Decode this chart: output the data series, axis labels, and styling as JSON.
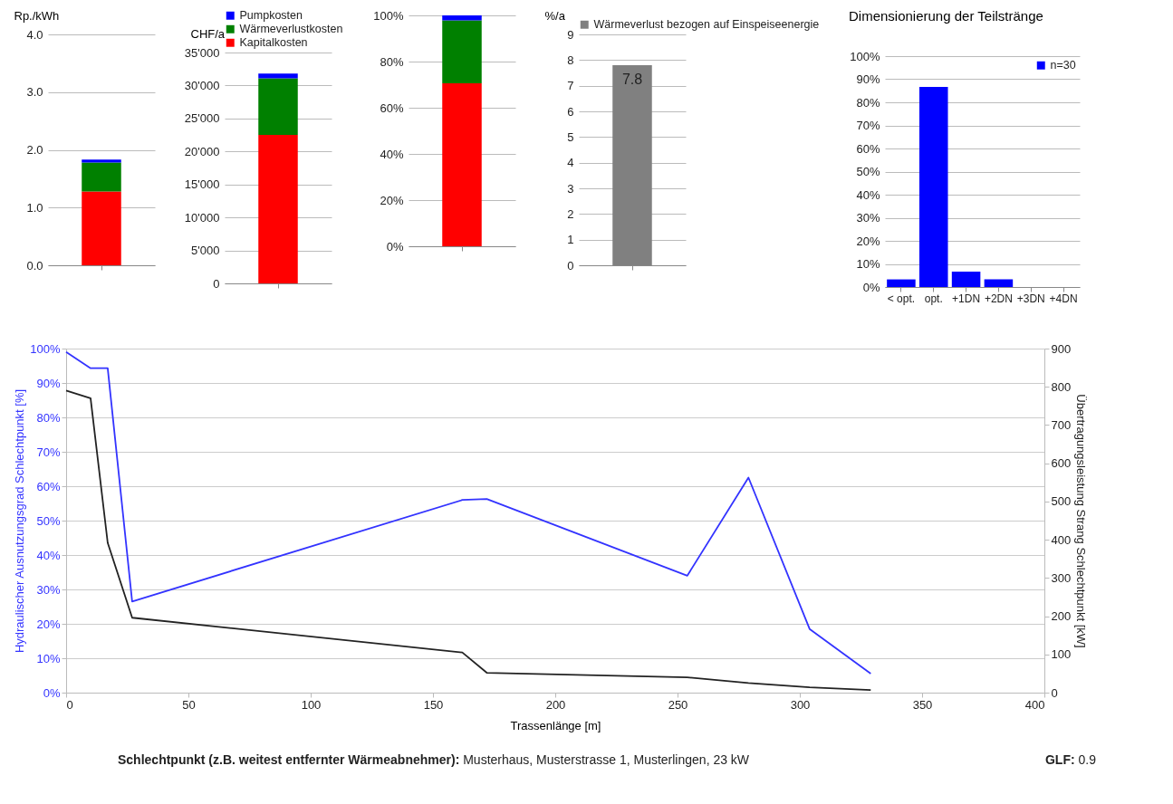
{
  "chart_data": [
    {
      "type": "bar",
      "stacked": true,
      "ylabel": "Rp./kWh",
      "categories": [
        null
      ],
      "series": [
        {
          "color": "#ff0000",
          "values": [
            1.28
          ]
        },
        {
          "color": "#008000",
          "values": [
            0.5
          ]
        },
        {
          "color": "#0000ff",
          "values": [
            0.05
          ]
        }
      ],
      "ylim": [
        0,
        4
      ],
      "yticks": [
        {
          "value": 0,
          "label": "0.0"
        },
        {
          "value": 1,
          "label": "1.0"
        },
        {
          "value": 2,
          "label": "2.0"
        },
        {
          "value": 3,
          "label": "3.0"
        },
        {
          "value": 4,
          "label": "4.0"
        }
      ],
      "grid": "y"
    },
    {
      "type": "bar",
      "stacked": true,
      "ylabel": "CHF/a",
      "categories": [
        null
      ],
      "series": [
        {
          "name": "Kapitalkosten",
          "color": "#ff0000",
          "values": [
            22500
          ]
        },
        {
          "name": "Wärmeverlustkosten",
          "color": "#008000",
          "values": [
            8600
          ]
        },
        {
          "name": "Pumpkosten",
          "color": "#0000ff",
          "values": [
            700
          ]
        }
      ],
      "ylim": [
        0,
        35000
      ],
      "yticks": [
        0,
        {
          "value": 5000,
          "label": "5'000"
        },
        {
          "value": 10000,
          "label": "10'000"
        },
        {
          "value": 15000,
          "label": "15'000"
        },
        {
          "value": 20000,
          "label": "20'000"
        },
        {
          "value": 25000,
          "label": "25'000"
        },
        {
          "value": 30000,
          "label": "30'000"
        },
        {
          "value": 35000,
          "label": "35'000"
        }
      ],
      "grid": "y",
      "legend": "top"
    },
    {
      "type": "bar",
      "stacked": true,
      "categories": [
        null
      ],
      "series": [
        {
          "color": "#ff0000",
          "values": [
            70.6
          ]
        },
        {
          "color": "#008000",
          "values": [
            27.2
          ]
        },
        {
          "color": "#0000ff",
          "values": [
            2.2
          ]
        }
      ],
      "ylim": [
        0,
        100
      ],
      "yticks": [
        {
          "value": 0,
          "label": "0%"
        },
        {
          "value": 20,
          "label": "20%"
        },
        {
          "value": 40,
          "label": "40%"
        },
        {
          "value": 60,
          "label": "60%"
        },
        {
          "value": 80,
          "label": "80%"
        },
        {
          "value": 100,
          "label": "100%"
        }
      ],
      "grid": "y"
    },
    {
      "type": "bar",
      "ylabel": "%/a",
      "categories": [
        null
      ],
      "series": [
        {
          "name": "Wärmeverlust bezogen auf Einspeiseenergie",
          "color": "#808080",
          "values": [
            7.8
          ]
        }
      ],
      "ylim": [
        0,
        9
      ],
      "yticks": [
        0,
        1,
        2,
        3,
        4,
        5,
        6,
        7,
        8,
        9
      ],
      "grid": "y",
      "legend": "top",
      "data_labels": true
    },
    {
      "type": "bar",
      "title": "Dimensionierung der Teilstränge",
      "categories": [
        "< opt.",
        "opt.",
        "+1DN",
        "+2DN",
        "+3DN",
        "+4DN"
      ],
      "series": [
        {
          "name": "n=30",
          "color": "#0000ff",
          "values": [
            3.3,
            86.7,
            6.7,
            3.3,
            0,
            0
          ]
        }
      ],
      "ylim": [
        0,
        100
      ],
      "yticks": [
        {
          "value": 0,
          "label": "0%"
        },
        {
          "value": 10,
          "label": "10%"
        },
        {
          "value": 20,
          "label": "20%"
        },
        {
          "value": 30,
          "label": "30%"
        },
        {
          "value": 40,
          "label": "40%"
        },
        {
          "value": 50,
          "label": "50%"
        },
        {
          "value": 60,
          "label": "60%"
        },
        {
          "value": 70,
          "label": "70%"
        },
        {
          "value": 80,
          "label": "80%"
        },
        {
          "value": 90,
          "label": "90%"
        },
        {
          "value": 100,
          "label": "100%"
        }
      ],
      "grid": "y",
      "legend": "top right"
    },
    {
      "type": "line",
      "xlabel": "Trassenlänge [m]",
      "ylabel": "Hydraulischer Ausnutzungsgrad Schlechtpunkt [%]",
      "y2label": "Übertragungsleistung Strang Schlechtpunkt [kW]",
      "x": [
        0,
        10,
        17,
        27,
        162,
        172,
        254,
        279,
        304,
        329
      ],
      "series": [
        {
          "color": "#3333ff",
          "axis": "y",
          "values": [
            99,
            94.3,
            94.3,
            26.5,
            56,
            56.3,
            34,
            62.5,
            18.5,
            5.5
          ]
        },
        {
          "color": "#222222",
          "axis": "y2",
          "values": [
            790,
            770,
            392,
            196,
            105,
            52,
            40,
            25,
            14,
            7
          ]
        }
      ],
      "xlim": [
        0,
        400
      ],
      "xticks": [
        0,
        50,
        100,
        150,
        200,
        250,
        300,
        350,
        400
      ],
      "ylim": [
        0,
        100
      ],
      "yticks": [
        {
          "value": 0,
          "label": "0%"
        },
        {
          "value": 10,
          "label": "10%"
        },
        {
          "value": 20,
          "label": "20%"
        },
        {
          "value": 30,
          "label": "30%"
        },
        {
          "value": 40,
          "label": "40%"
        },
        {
          "value": 50,
          "label": "50%"
        },
        {
          "value": 60,
          "label": "60%"
        },
        {
          "value": 70,
          "label": "70%"
        },
        {
          "value": 80,
          "label": "80%"
        },
        {
          "value": 90,
          "label": "90%"
        },
        {
          "value": 100,
          "label": "100%"
        }
      ],
      "y2lim": [
        0,
        900
      ],
      "y2ticks": [
        0,
        100,
        200,
        300,
        400,
        500,
        600,
        700,
        800,
        900
      ],
      "grid": "y",
      "annotations": [
        "Schlechtpunkt (z.B. weitest entfernter Wärmeabnehmer): Musterhaus, Musterstrasse 1, Musterlingen, 23 kW",
        "GLF: 0.9"
      ]
    }
  ]
}
